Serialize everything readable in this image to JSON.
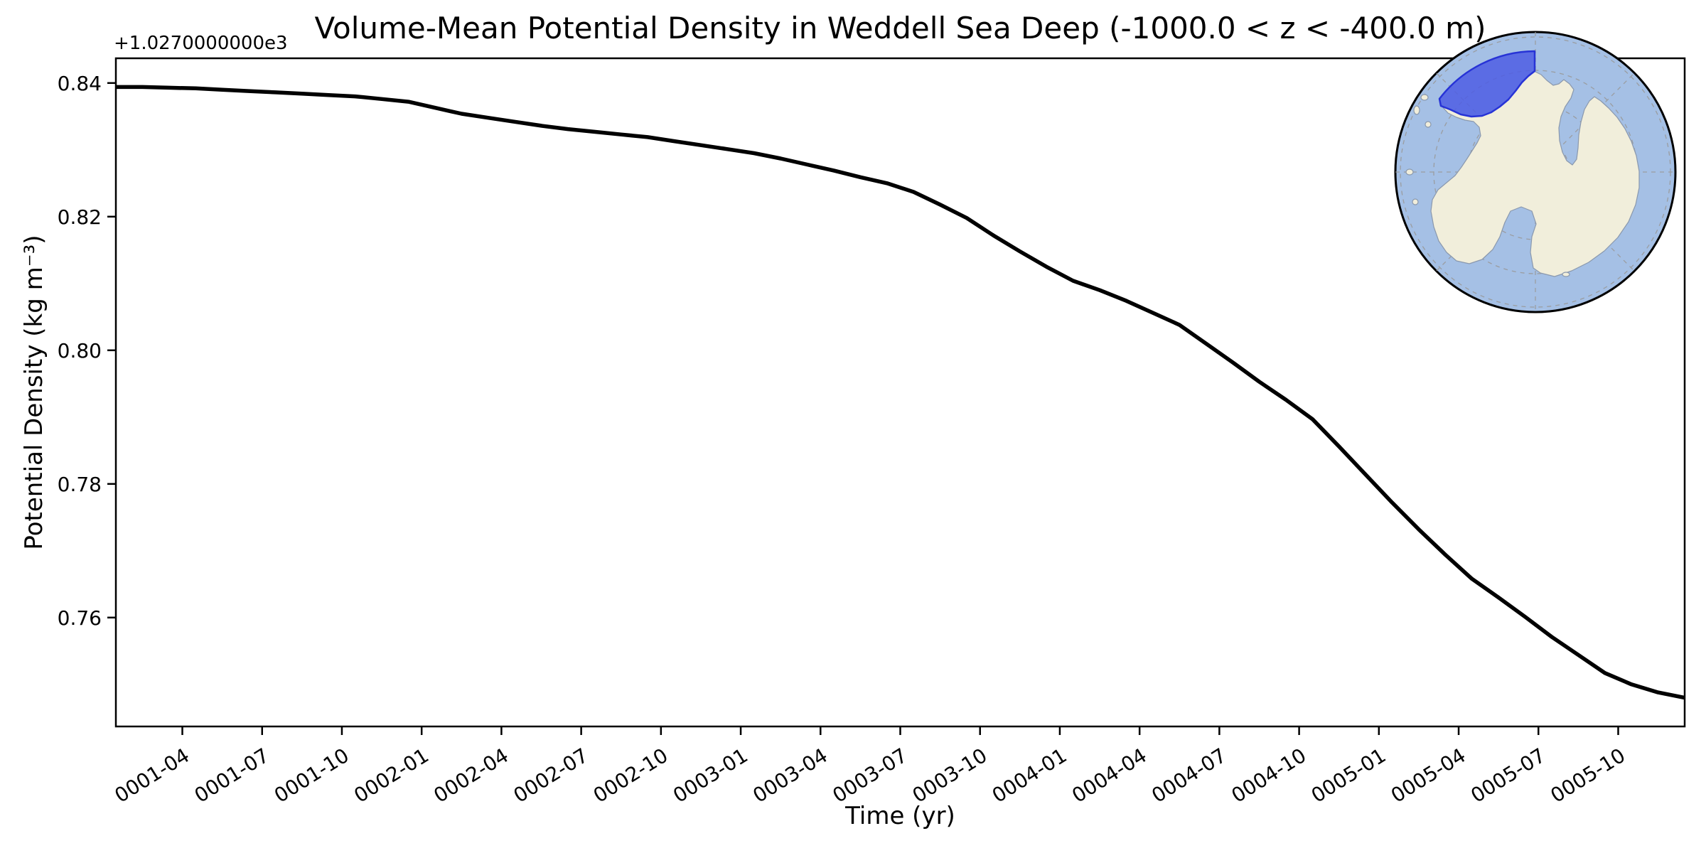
{
  "title": "Volume-Mean Potential Density in Weddell Sea Deep (-1000.0 < z < -400.0 m)",
  "axis": {
    "xlabel": "Time (yr)",
    "ylabel": "Potential Density (kg m⁻³)",
    "y_offset_text": "+1.0270000000e3"
  },
  "colors": {
    "line": "#000000",
    "spine": "#000000",
    "ocean": "#a5c0e5",
    "land": "#f1eedb",
    "coast": "#8a98ad",
    "grid": "#999999",
    "region_fill": "#4d5de4",
    "region_edge": "#2733d6"
  },
  "chart_data": {
    "type": "line",
    "title": "Volume-Mean Potential Density in Weddell Sea Deep (-1000.0 < z < -400.0 m)",
    "xlabel": "Time (yr)",
    "ylabel": "Potential Density (kg m⁻³)",
    "grid": false,
    "legend": null,
    "y_offset_base": 1027,
    "y_offset_text": "+1.0270000000e3",
    "ylim": [
      0.7437,
      0.8437
    ],
    "ytick_values": [
      0.84,
      0.82,
      0.8,
      0.78,
      0.76
    ],
    "ytick_labels": [
      "0.84",
      "0.82",
      "0.80",
      "0.78",
      "0.76"
    ],
    "xtick_labels": [
      "0001-04",
      "0001-07",
      "0001-10",
      "0002-01",
      "0002-04",
      "0002-07",
      "0002-10",
      "0003-01",
      "0003-04",
      "0003-07",
      "0003-10",
      "0004-01",
      "0004-04",
      "0004-07",
      "0004-10",
      "0005-01",
      "0005-04",
      "0005-07",
      "0005-10"
    ],
    "x": [
      "0001-01",
      "0001-02",
      "0001-03",
      "0001-04",
      "0001-05",
      "0001-06",
      "0001-07",
      "0001-08",
      "0001-09",
      "0001-10",
      "0001-11",
      "0001-12",
      "0002-01",
      "0002-02",
      "0002-03",
      "0002-04",
      "0002-05",
      "0002-06",
      "0002-07",
      "0002-08",
      "0002-09",
      "0002-10",
      "0002-11",
      "0002-12",
      "0003-01",
      "0003-02",
      "0003-03",
      "0003-04",
      "0003-05",
      "0003-06",
      "0003-07",
      "0003-08",
      "0003-09",
      "0003-10",
      "0003-11",
      "0003-12",
      "0004-01",
      "0004-02",
      "0004-03",
      "0004-04",
      "0004-05",
      "0004-06",
      "0004-07",
      "0004-08",
      "0004-09",
      "0004-10",
      "0004-11",
      "0004-12",
      "0005-01",
      "0005-02",
      "0005-03",
      "0005-04",
      "0005-05",
      "0005-06",
      "0005-07",
      "0005-08",
      "0005-09",
      "0005-10",
      "0005-11",
      "0005-12"
    ],
    "values": [
      0.8394,
      0.8394,
      0.8393,
      0.8392,
      0.839,
      0.8388,
      0.8386,
      0.8384,
      0.8382,
      0.838,
      0.8376,
      0.8372,
      0.8363,
      0.8354,
      0.8348,
      0.8342,
      0.8336,
      0.8331,
      0.8327,
      0.8323,
      0.8319,
      0.8313,
      0.8307,
      0.8301,
      0.8295,
      0.8287,
      0.8278,
      0.8269,
      0.8259,
      0.825,
      0.8237,
      0.8218,
      0.8198,
      0.8172,
      0.8148,
      0.8125,
      0.8104,
      0.809,
      0.8074,
      0.8056,
      0.8038,
      0.801,
      0.7982,
      0.7953,
      0.7926,
      0.7897,
      0.7856,
      0.7814,
      0.7772,
      0.7732,
      0.7694,
      0.7658,
      0.763,
      0.7601,
      0.7571,
      0.7544,
      0.7517,
      0.75,
      0.7488,
      0.748
    ],
    "inset": {
      "description": "South polar stereographic map of Antarctica with the Weddell Sea sector highlighted",
      "highlighted_region": "Weddell Sea"
    }
  }
}
